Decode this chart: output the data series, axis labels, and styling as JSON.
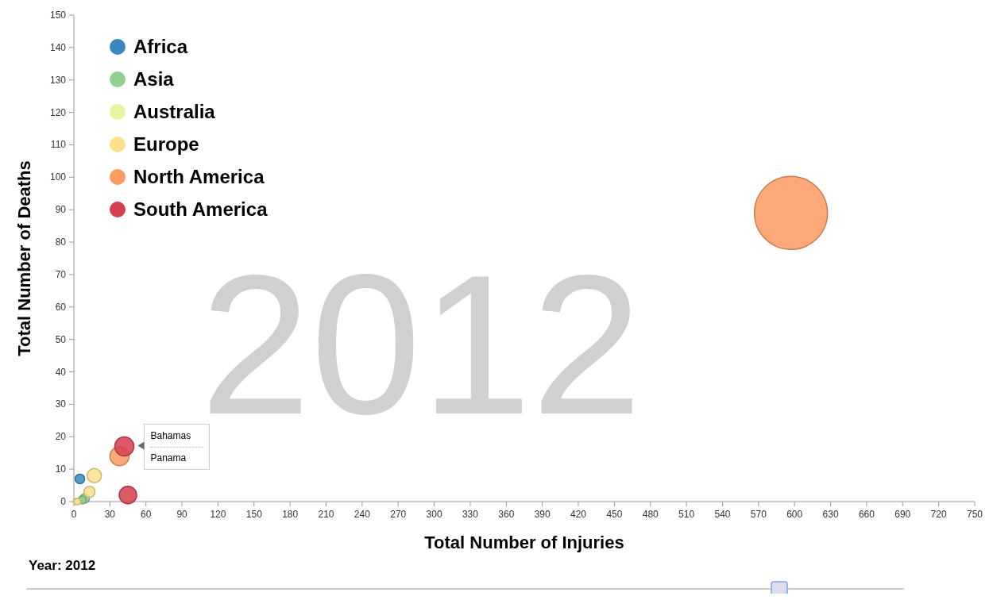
{
  "chart_data": {
    "type": "bubble",
    "xlabel": "Total Number of Injuries",
    "ylabel": "Total Number of Deaths",
    "xlim": [
      0,
      750
    ],
    "xticks": [
      0,
      30,
      60,
      90,
      120,
      150,
      180,
      210,
      240,
      270,
      300,
      330,
      360,
      390,
      420,
      450,
      480,
      510,
      540,
      570,
      600,
      630,
      660,
      690,
      720,
      750
    ],
    "ylim": [
      0,
      150
    ],
    "yticks": [
      0,
      10,
      20,
      30,
      40,
      50,
      60,
      70,
      80,
      90,
      100,
      110,
      120,
      130,
      140,
      150
    ],
    "grid": false,
    "legend": "top left",
    "annotations": [
      "2012",
      "Year: 2012",
      {
        "text": "Bahamas",
        "x": 42,
        "y": 17
      },
      "Panama"
    ],
    "series": [
      {
        "name": "Africa",
        "color": "#3a87c0",
        "x": [
          5
        ],
        "values": [
          7
        ],
        "sizes": [
          0.017
        ]
      },
      {
        "name": "Asia",
        "color": "#8fd08f",
        "x": [
          9,
          7
        ],
        "values": [
          1,
          0.5
        ],
        "sizes": [
          0.017,
          0.012
        ]
      },
      {
        "name": "Australia",
        "color": "#e6f5a0",
        "x": [
          2
        ],
        "values": [
          0
        ],
        "sizes": [
          0.008
        ]
      },
      {
        "name": "Europe",
        "color": "#fde08d",
        "x": [
          17,
          13,
          3
        ],
        "values": [
          8,
          3,
          0
        ],
        "sizes": [
          0.038,
          0.023,
          0.008
        ]
      },
      {
        "name": "North America",
        "color": "#fc9a62",
        "x": [
          597,
          38
        ],
        "values": [
          89,
          14
        ],
        "sizes": [
          1,
          0.068
        ]
      },
      {
        "name": "South America",
        "color": "#d53e4f",
        "x": [
          42,
          45
        ],
        "values": [
          17,
          2
        ],
        "sizes": [
          0.068,
          0.057
        ]
      }
    ]
  }
}
